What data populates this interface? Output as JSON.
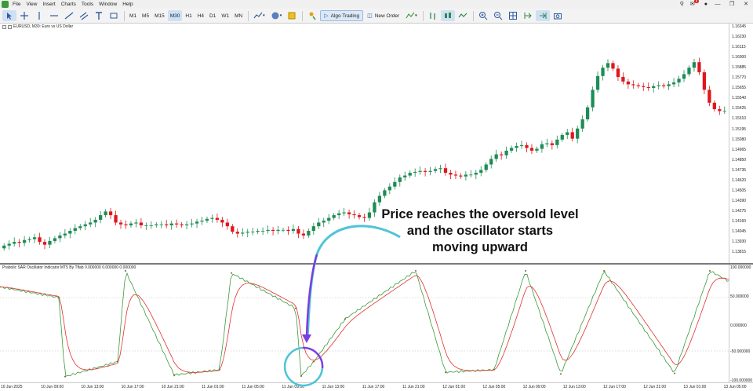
{
  "menu": {
    "items": [
      "File",
      "View",
      "Insert",
      "Charts",
      "Tools",
      "Window",
      "Help"
    ],
    "notification_count": "9"
  },
  "toolbar": {
    "timeframes": [
      "M1",
      "M5",
      "M15",
      "M30",
      "H1",
      "H4",
      "D1",
      "W1",
      "MN"
    ],
    "active_timeframe": "M30",
    "algo_trading_label": "Algo Trading",
    "new_order_label": "New Order"
  },
  "chart": {
    "symbol_label": "EURUSD, M30: Euro vs US Dollar",
    "indicator_label": "Prabolic SAR Oscillator Indicator MT5 By Tflab 0.000000 0.000000 0.000000",
    "price_ticks": [
      "1.16345",
      "1.16230",
      "1.16115",
      "1.16000",
      "1.15885",
      "1.15770",
      "1.15655",
      "1.15540",
      "1.15425",
      "1.15310",
      "1.15195",
      "1.15080",
      "1.14965",
      "1.14850",
      "1.14735",
      "1.14620",
      "1.14505",
      "1.14390",
      "1.14275",
      "1.14160",
      "1.14045",
      "1.13930",
      "1.13815"
    ],
    "osc_ticks": [
      "100.000000",
      "50.000000",
      "0.000000",
      "-50.000000",
      "-100.000000"
    ],
    "time_ticks": [
      "10 Jun 2025",
      "10 Jun 09:00",
      "10 Jun 13:00",
      "10 Jun 17:00",
      "10 Jun 21:00",
      "11 Jun 01:00",
      "11 Jun 05:00",
      "11 Jun 09:00",
      "11 Jun 13:00",
      "11 Jun 17:00",
      "11 Jun 21:00",
      "12 Jun 01:00",
      "12 Jun 05:00",
      "12 Jun 09:00",
      "12 Jun 13:00",
      "12 Jun 17:00",
      "12 Jun 21:00",
      "13 Jun 01:00",
      "13 Jun 05:00"
    ],
    "annotation": [
      "Price reaches the oversold level",
      "and the oscillator starts",
      "moving upward"
    ],
    "colors": {
      "bull": "#1e8c55",
      "bear": "#e0161b",
      "green_line": "#3a9a3a",
      "red_line": "#e03030",
      "arrow": "#7b3fe0",
      "arc": "#4fc4d8",
      "circle_a": "#7b3fe0",
      "circle_b": "#4fc4d8"
    }
  },
  "chart_data": {
    "type": "candlestick",
    "title": "EURUSD, M30: Euro vs US Dollar",
    "close_series": [
      1.1397,
      1.1399,
      1.1401,
      1.14,
      1.1403,
      1.1404,
      1.1406,
      1.1401,
      1.1398,
      1.1402,
      1.1405,
      1.1408,
      1.141,
      1.1413,
      1.1416,
      1.1418,
      1.142,
      1.1422,
      1.1425,
      1.143,
      1.1434,
      1.143,
      1.1422,
      1.142,
      1.1419,
      1.1421,
      1.1422,
      1.1419,
      1.1419,
      1.1419,
      1.142,
      1.142,
      1.1419,
      1.1421,
      1.142,
      1.1419,
      1.142,
      1.1421,
      1.1423,
      1.1424,
      1.1426,
      1.1427,
      1.1425,
      1.1422,
      1.1418,
      1.1412,
      1.141,
      1.1411,
      1.1412,
      1.1412,
      1.1413,
      1.1413,
      1.1414,
      1.1413,
      1.1414,
      1.1414,
      1.1413,
      1.1415,
      1.141,
      1.1408,
      1.1413,
      1.1418,
      1.1422,
      1.1424,
      1.1427,
      1.143,
      1.1432,
      1.1433,
      1.1431,
      1.143,
      1.1428,
      1.1427,
      1.1433,
      1.1444,
      1.1451,
      1.1457,
      1.1461,
      1.1466,
      1.1471,
      1.1473,
      1.1476,
      1.1477,
      1.1478,
      1.1477,
      1.1478,
      1.148,
      1.1481,
      1.1476,
      1.1474,
      1.1473,
      1.1472,
      1.1474,
      1.1474,
      1.1476,
      1.1479,
      1.1485,
      1.1491,
      1.1496,
      1.1495,
      1.15,
      1.1503,
      1.1505,
      1.1506,
      1.1503,
      1.15,
      1.1502,
      1.1507,
      1.1508,
      1.1506,
      1.1512,
      1.1517,
      1.152,
      1.1513,
      1.1524,
      1.1534,
      1.1547,
      1.1566,
      1.1581,
      1.159,
      1.1595,
      1.1589,
      1.158,
      1.1575,
      1.1572,
      1.1571,
      1.157,
      1.1569,
      1.1568,
      1.157,
      1.1571,
      1.157,
      1.1572,
      1.1574,
      1.1578,
      1.1583,
      1.159,
      1.1596,
      1.1585,
      1.1566,
      1.1552,
      1.1545,
      1.1543,
      1.1543
    ],
    "ylim": [
      1.13815,
      1.16345
    ],
    "oscillator": {
      "name": "Prabolic SAR Oscillator Indicator MT5 By Tflab",
      "ylim": [
        -100,
        100
      ],
      "levels": [
        50,
        -50
      ]
    }
  }
}
